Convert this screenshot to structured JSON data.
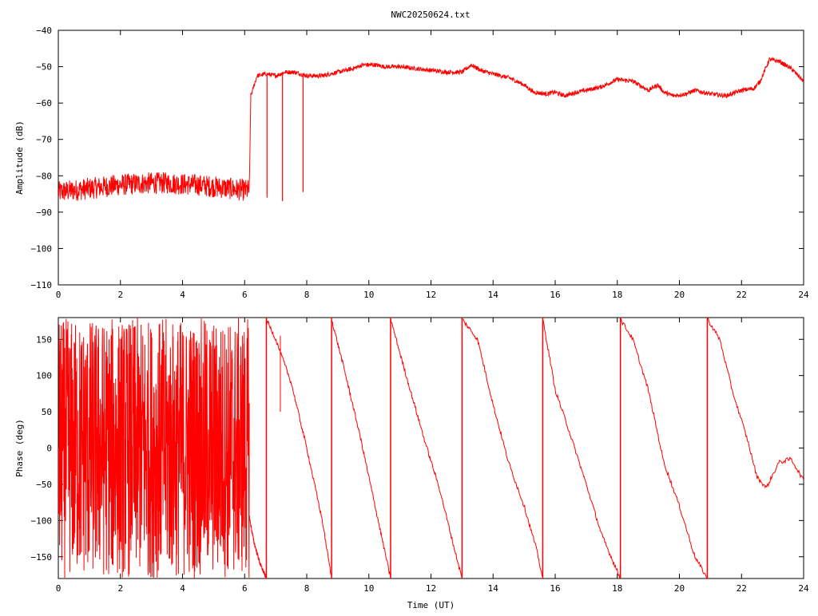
{
  "title": "NWC20250624.txt",
  "chart_data": [
    {
      "type": "line",
      "ylabel": "Amplitude (dB)",
      "xlabel": "",
      "xlim": [
        0,
        24
      ],
      "ylim": [
        -110,
        -40
      ],
      "xticks": [
        0,
        2,
        4,
        6,
        8,
        10,
        12,
        14,
        16,
        18,
        20,
        22,
        24
      ],
      "yticks": [
        -40,
        -50,
        -60,
        -70,
        -80,
        -90,
        -100,
        -110
      ],
      "grid": false,
      "color": "#ff0000",
      "series": [
        {
          "x": [
            0,
            0.5,
            1,
            1.5,
            2,
            2.5,
            3,
            3.5,
            4,
            4.5,
            5,
            5.5,
            6,
            6.15,
            6.2,
            6.4,
            6.7,
            7,
            7.3,
            7.6,
            8,
            8.5,
            9,
            9.5,
            9.8,
            10.2,
            10.5,
            11,
            11.5,
            12,
            12.5,
            13,
            13.3,
            13.6,
            14,
            14.5,
            15,
            15.3,
            15.7,
            16,
            16.3,
            16.7,
            17,
            17.5,
            18,
            18.5,
            19,
            19.3,
            19.5,
            19.8,
            20.2,
            20.5,
            21,
            21.5,
            22,
            22.4,
            22.6,
            22.9,
            23.2,
            23.6,
            24
          ],
          "y": [
            -84.5,
            -84,
            -83.5,
            -83,
            -82.5,
            -82.2,
            -82,
            -82,
            -82.3,
            -82.5,
            -83,
            -83.5,
            -84,
            -84,
            -58,
            -52.5,
            -52,
            -52.5,
            -51.5,
            -51.5,
            -52.5,
            -52.5,
            -51.5,
            -50.5,
            -49.5,
            -49.5,
            -50,
            -50,
            -50.5,
            -51,
            -51.5,
            -51.5,
            -49.5,
            -51,
            -52,
            -53,
            -55,
            -57,
            -57.5,
            -57,
            -58,
            -57,
            -56.5,
            -55.5,
            -53.5,
            -54,
            -56.5,
            -55,
            -57,
            -58,
            -57.5,
            -56.5,
            -57.5,
            -58,
            -56.5,
            -56,
            -54,
            -48,
            -48.5,
            -50.5,
            -54
          ]
        }
      ],
      "dropouts": [
        {
          "x": 6.72,
          "y_min": -86
        },
        {
          "x": 7.22,
          "y_min": -87
        },
        {
          "x": 7.88,
          "y_min": -84.5
        }
      ],
      "noise_ranges": [
        {
          "x_start": 0,
          "x_end": 6.15,
          "amplitude": 3
        }
      ]
    },
    {
      "type": "line",
      "ylabel": "Phase (deg)",
      "xlabel": "Time (UT)",
      "xlim": [
        0,
        24
      ],
      "ylim": [
        -180,
        180
      ],
      "xticks": [
        0,
        2,
        4,
        6,
        8,
        10,
        12,
        14,
        16,
        18,
        20,
        22,
        24
      ],
      "yticks": [
        150,
        100,
        50,
        0,
        -50,
        -100,
        -150
      ],
      "grid": false,
      "color": "#ff0000",
      "noise_ranges": [
        {
          "x_start": 0,
          "x_end": 6.15,
          "y_min": -180,
          "y_max": 180
        }
      ],
      "series": [
        {
          "x": [
            6.15,
            6.3,
            6.5,
            6.7
          ],
          "y": [
            -95,
            -130,
            -160,
            -180
          ]
        },
        {
          "x": [
            6.7,
            7,
            7.5,
            8,
            8.5,
            8.8
          ],
          "y": [
            178,
            150,
            90,
            0,
            -100,
            -180
          ]
        },
        {
          "x": [
            8.8,
            9.2,
            9.7,
            10.2,
            10.7
          ],
          "y": [
            178,
            110,
            20,
            -80,
            -180
          ]
        },
        {
          "x": [
            10.7,
            11.2,
            11.8,
            12.3,
            12.7,
            13.0
          ],
          "y": [
            178,
            100,
            10,
            -60,
            -130,
            -180
          ]
        },
        {
          "x": [
            13.0,
            13.5,
            14,
            14.5,
            15,
            15.4,
            15.6
          ],
          "y": [
            178,
            150,
            60,
            -20,
            -80,
            -140,
            -180
          ]
        },
        {
          "x": [
            15.6,
            15.8,
            16,
            16.4,
            17,
            17.5,
            18.1
          ],
          "y": [
            178,
            130,
            80,
            30,
            -50,
            -120,
            -180
          ]
        },
        {
          "x": [
            18.1,
            18.5,
            19,
            19.5,
            20,
            20.5,
            20.9
          ],
          "y": [
            178,
            150,
            80,
            -20,
            -80,
            -150,
            -180
          ]
        },
        {
          "x": [
            20.9,
            21.3,
            21.7,
            22.2,
            22.5,
            22.8,
            23.2,
            23.6,
            24
          ],
          "y": [
            178,
            150,
            80,
            10,
            -40,
            -55,
            -20,
            -15,
            -45
          ]
        }
      ],
      "spikes": [
        {
          "x": 7.15,
          "y_min": 50,
          "y_max": 155
        }
      ]
    }
  ]
}
